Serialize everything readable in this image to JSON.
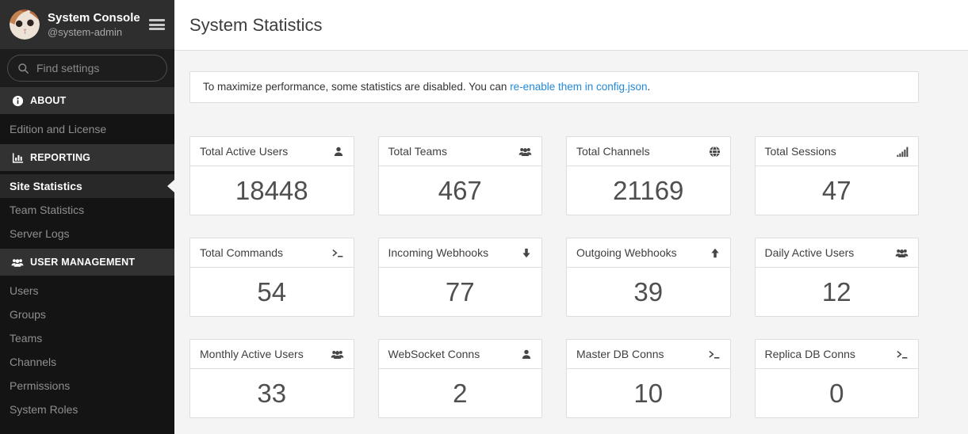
{
  "colors": {
    "sidebar_bg": "#141414",
    "sidebar_header_bg": "#2e2e2e",
    "section_header_bg": "#323232",
    "active_item_bg": "#282828",
    "content_bg": "#f4f4f4",
    "card_border": "#dddddd",
    "link_blue": "#2389d7"
  },
  "sidebar": {
    "header": {
      "title": "System Console",
      "subtitle": "@system-admin",
      "avatar_icon": "cat-avatar",
      "menu_icon": "hamburger-icon"
    },
    "search": {
      "placeholder": "Find settings",
      "icon": "search-icon"
    },
    "sections": [
      {
        "label": "ABOUT",
        "icon": "info-circle-icon",
        "items": [
          {
            "label": "Edition and License",
            "active": false
          }
        ]
      },
      {
        "label": "REPORTING",
        "icon": "bar-chart-icon",
        "items": [
          {
            "label": "Site Statistics",
            "active": true
          },
          {
            "label": "Team Statistics",
            "active": false
          },
          {
            "label": "Server Logs",
            "active": false
          }
        ]
      },
      {
        "label": "USER MANAGEMENT",
        "icon": "users-icon",
        "items": [
          {
            "label": "Users",
            "active": false
          },
          {
            "label": "Groups",
            "active": false
          },
          {
            "label": "Teams",
            "active": false
          },
          {
            "label": "Channels",
            "active": false
          },
          {
            "label": "Permissions",
            "active": false
          },
          {
            "label": "System Roles",
            "active": false
          }
        ]
      }
    ]
  },
  "main": {
    "title": "System Statistics",
    "banner": {
      "text_before": "To maximize performance, some statistics are disabled. You can ",
      "link_text": "re-enable them in config.json",
      "text_after": "."
    },
    "cards": [
      {
        "label": "Total Active Users",
        "value": "18448",
        "icon": "user-icon"
      },
      {
        "label": "Total Teams",
        "value": "467",
        "icon": "users-icon"
      },
      {
        "label": "Total Channels",
        "value": "21169",
        "icon": "globe-icon"
      },
      {
        "label": "Total Sessions",
        "value": "47",
        "icon": "signal-icon"
      },
      {
        "label": "Total Commands",
        "value": "54",
        "icon": "terminal-icon"
      },
      {
        "label": "Incoming Webhooks",
        "value": "77",
        "icon": "arrow-down-icon"
      },
      {
        "label": "Outgoing Webhooks",
        "value": "39",
        "icon": "arrow-up-icon"
      },
      {
        "label": "Daily Active Users",
        "value": "12",
        "icon": "users-icon"
      },
      {
        "label": "Monthly Active Users",
        "value": "33",
        "icon": "users-icon"
      },
      {
        "label": "WebSocket Conns",
        "value": "2",
        "icon": "user-icon"
      },
      {
        "label": "Master DB Conns",
        "value": "10",
        "icon": "terminal-icon"
      },
      {
        "label": "Replica DB Conns",
        "value": "0",
        "icon": "terminal-icon"
      }
    ]
  }
}
